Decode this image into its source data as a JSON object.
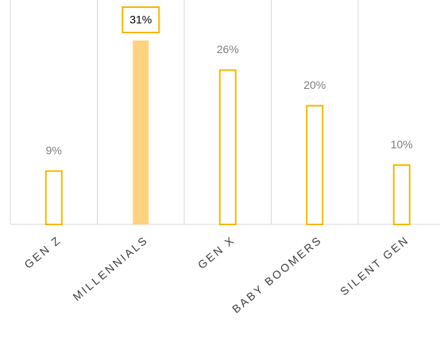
{
  "chart_data": {
    "type": "bar",
    "categories": [
      "GEN Z",
      "MILLENNIALS",
      "GEN X",
      "BABY BOOMERS",
      "SILENT GEN"
    ],
    "values": [
      9,
      31,
      26,
      20,
      10
    ],
    "value_labels": [
      "9%",
      "31%",
      "26%",
      "20%",
      "10%"
    ],
    "colors": [
      "#ffffff",
      "#ffd280",
      "#ffffff",
      "#ffffff",
      "#ffffff"
    ],
    "edge_color": "#f5b800",
    "grid": true
  }
}
